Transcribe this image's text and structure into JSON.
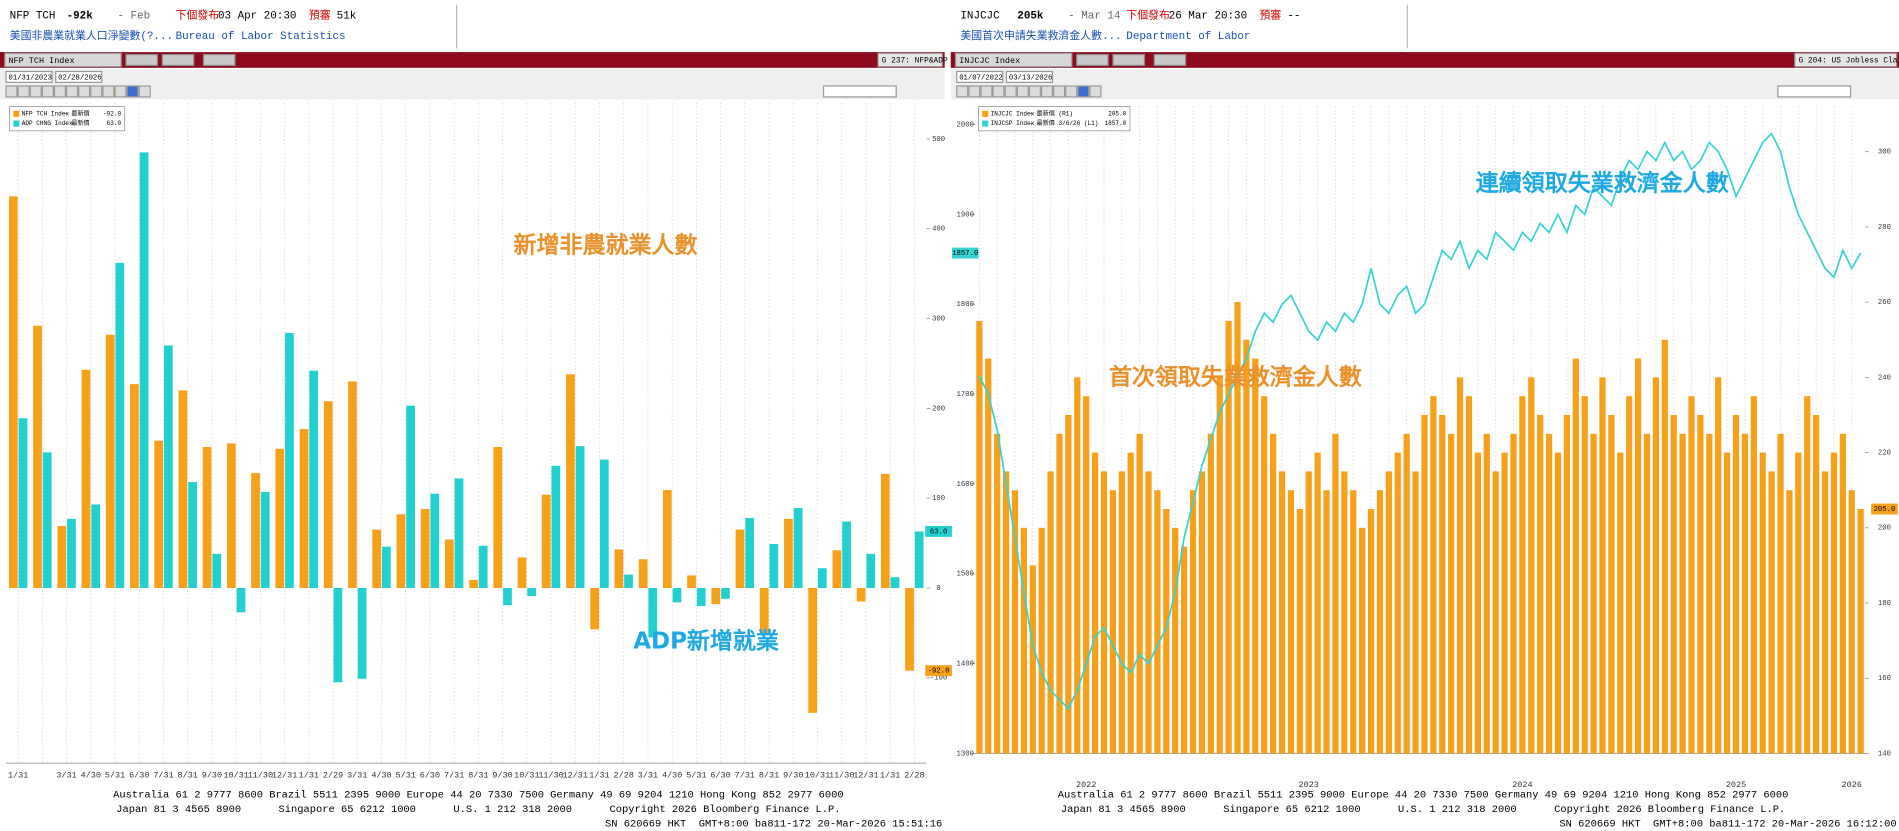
{
  "panels": [
    {
      "header": {
        "ticker": "NFP TCH",
        "last": "-92k",
        "period": "- Feb",
        "next_label": "下個發布",
        "next": "03 Apr 20:30",
        "survey_label": "預審",
        "survey": "51k",
        "description": "美國非農業就業人口淨變數(?...",
        "source": "Bureau of Labor Statistics"
      },
      "toolbar": {
        "security": "NFP TCH Index",
        "function": "G 237: NFP&ADP",
        "start": "01/31/2023",
        "end": "02/28/2026"
      },
      "footer": [
        "Australia 61 2 9777 8600 Brazil 5511 2395 9000 Europe 44 20 7330 7500 Germany 49 69 9204 1210 Hong Kong 852 2977 6000",
        "Japan 81 3 4565 8900      Singapore 65 6212 1000      U.S. 1 212 318 2000      Copyright 2026 Bloomberg Finance L.P.",
        "SN 620669 HKT  GMT+8:00 ba811-172 20-Mar-2026 15:51:16"
      ]
    },
    {
      "header": {
        "ticker": "INJCJC",
        "last": "205k",
        "period": "- Mar 14",
        "next_label": "下個發布",
        "next": "26 Mar 20:30",
        "survey_label": "預審",
        "survey": "--",
        "description": "美國首次申請失業救濟金人數...",
        "source": "Department of Labor"
      },
      "toolbar": {
        "security": "INJCJC Index",
        "function": "G 204: US Jobless Claims",
        "start": "01/07/2022",
        "end": "03/13/2026"
      },
      "footer": [
        "Australia 61 2 9777 8600 Brazil 5511 2395 9000 Europe 44 20 7330 7500 Germany 49 69 9204 1210 Hong Kong 852 2977 6000",
        "Japan 81 3 4565 8900      Singapore 65 6212 1000      U.S. 1 212 318 2000      Copyright 2026 Bloomberg Finance L.P.",
        "SN 620669 HKT  GMT+8:00 ba811-172 20-Mar-2026 16:12:00"
      ]
    }
  ],
  "chart_data": [
    {
      "type": "bar",
      "categories": [
        "1/31",
        null,
        "3/31",
        "4/30",
        "5/31",
        "6/30",
        "7/31",
        "8/31",
        "9/30",
        "10/31",
        "11/30",
        "12/31",
        "1/31",
        "2/29",
        "3/31",
        "4/30",
        "5/31",
        "6/30",
        "7/31",
        "8/31",
        "9/30",
        "10/31",
        "11/30",
        "12/31",
        "1/31",
        "2/28",
        "3/31",
        "4/30",
        "5/31",
        "6/30",
        "7/31",
        "8/31",
        "9/30",
        "10/31",
        "11/30",
        "12/31",
        "1/31",
        "2/28"
      ],
      "series": [
        {
          "name": "NFP TCH Index",
          "label": "- 最新價",
          "last_label": "-92.0",
          "color": "#f7a11a",
          "values": [
            436,
            292,
            69,
            243,
            282,
            227,
            164,
            220,
            157,
            161,
            128,
            155,
            177,
            208,
            230,
            65,
            82,
            88,
            54,
            9,
            157,
            34,
            104,
            238,
            -46,
            43,
            32,
            109,
            14,
            -18,
            65,
            -51,
            77,
            -139,
            42,
            -15,
            127,
            -92
          ]
        },
        {
          "name": "ADP CHNG Index",
          "label": "- 最新價",
          "last_label": "63.0",
          "color": "#22d0d0",
          "values": [
            189,
            151,
            77,
            93,
            362,
            485,
            270,
            118,
            38,
            -27,
            107,
            284,
            242,
            -105,
            -101,
            46,
            203,
            105,
            122,
            47,
            -19,
            -9,
            136,
            158,
            143,
            15,
            -55,
            -16,
            -20,
            -12,
            78,
            49,
            89,
            22,
            74,
            38,
            12,
            63
          ]
        }
      ],
      "ylim": [
        -195,
        540
      ],
      "yticks": [
        -100,
        0,
        100,
        200,
        300,
        400,
        500
      ],
      "grid": "x",
      "annotations": [
        {
          "text": "新增非農就業人數",
          "color": "#ea912c"
        },
        {
          "text": "ADP新增就業",
          "color": "#1fa9e4"
        }
      ]
    },
    {
      "type": "combo",
      "categories": [
        null,
        null,
        null,
        null,
        null,
        null,
        null,
        null,
        null,
        null,
        null,
        null,
        "2022",
        null,
        null,
        null,
        null,
        null,
        null,
        null,
        null,
        null,
        null,
        null,
        null,
        null,
        null,
        null,
        null,
        null,
        null,
        null,
        null,
        null,
        null,
        null,
        null,
        "2023",
        null,
        null,
        null,
        null,
        null,
        null,
        null,
        null,
        null,
        null,
        null,
        null,
        null,
        null,
        null,
        null,
        null,
        null,
        null,
        null,
        null,
        null,
        null,
        "2024",
        null,
        null,
        null,
        null,
        null,
        null,
        null,
        null,
        null,
        null,
        null,
        null,
        null,
        null,
        null,
        null,
        null,
        null,
        null,
        null,
        null,
        null,
        null,
        "2025",
        null,
        null,
        null,
        null,
        null,
        null,
        null,
        null,
        null,
        null,
        null,
        null,
        "2026",
        null
      ],
      "series": [
        {
          "name": "INJCJC Index",
          "label": "- 最新價 (R1)",
          "last_label": "205.0",
          "color": "#f7a11a",
          "kind": "bar",
          "axis": "y2",
          "values": [
            255,
            245,
            225,
            215,
            210,
            200,
            190,
            200,
            215,
            225,
            230,
            240,
            235,
            220,
            215,
            210,
            215,
            220,
            225,
            215,
            210,
            205,
            200,
            195,
            210,
            215,
            225,
            240,
            255,
            260,
            250,
            245,
            235,
            225,
            215,
            210,
            205,
            215,
            220,
            210,
            225,
            215,
            210,
            200,
            205,
            210,
            215,
            220,
            225,
            215,
            230,
            235,
            230,
            225,
            240,
            235,
            220,
            225,
            215,
            220,
            225,
            235,
            240,
            230,
            225,
            220,
            230,
            245,
            235,
            225,
            240,
            230,
            220,
            235,
            245,
            225,
            240,
            250,
            230,
            225,
            235,
            230,
            225,
            240,
            220,
            230,
            225,
            235,
            220,
            215,
            225,
            210,
            220,
            235,
            230,
            215,
            220,
            225,
            210,
            205
          ]
        },
        {
          "name": "INJCSP Index",
          "label": "- 最新價 3/6/26 (L1)",
          "last_label": "1857.0",
          "color": "#35d3d3",
          "kind": "line",
          "values": [
            1720,
            1700,
            1660,
            1600,
            1540,
            1480,
            1420,
            1390,
            1370,
            1360,
            1350,
            1370,
            1400,
            1430,
            1440,
            1420,
            1400,
            1390,
            1410,
            1400,
            1420,
            1440,
            1480,
            1540,
            1580,
            1620,
            1650,
            1680,
            1700,
            1720,
            1740,
            1770,
            1790,
            1780,
            1800,
            1810,
            1790,
            1770,
            1760,
            1780,
            1770,
            1790,
            1780,
            1800,
            1840,
            1800,
            1790,
            1810,
            1820,
            1790,
            1800,
            1830,
            1860,
            1850,
            1870,
            1840,
            1860,
            1850,
            1880,
            1870,
            1860,
            1880,
            1870,
            1890,
            1880,
            1900,
            1880,
            1910,
            1900,
            1930,
            1920,
            1910,
            1940,
            1960,
            1950,
            1970,
            1960,
            1980,
            1960,
            1970,
            1950,
            1960,
            1980,
            1970,
            1950,
            1920,
            1940,
            1960,
            1980,
            1990,
            1970,
            1930,
            1900,
            1880,
            1860,
            1840,
            1830,
            1860,
            1840,
            1857
          ]
        }
      ],
      "ylim": [
        1300,
        2020
      ],
      "yticks": [
        1300,
        1400,
        1500,
        1600,
        1700,
        1800,
        1900,
        2000
      ],
      "y2lim": [
        140,
        312
      ],
      "y2ticks": [
        140,
        160,
        180,
        200,
        220,
        240,
        260,
        280,
        300
      ],
      "grid": "x",
      "annotations": [
        {
          "text": "連續領取失業救濟金人數",
          "color": "#1fa9e4"
        },
        {
          "text": "首次領取失業救濟金人數",
          "color": "#ea912c"
        }
      ]
    }
  ]
}
